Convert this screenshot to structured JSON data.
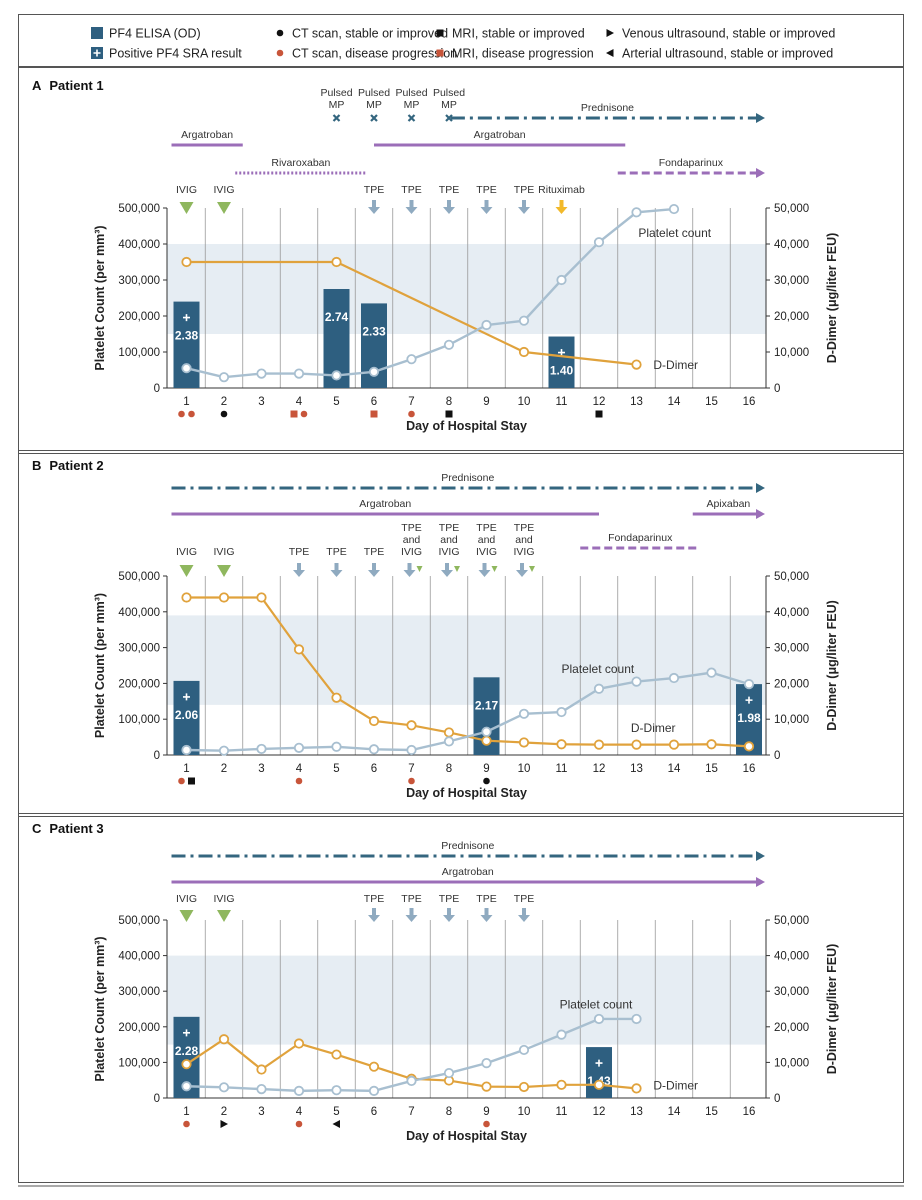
{
  "legend": [
    {
      "id": "elisa",
      "label": "PF4 ELISA (OD)"
    },
    {
      "id": "ct_stable",
      "label": "CT scan, stable or improved"
    },
    {
      "id": "mri_stable",
      "label": "MRI, stable or improved"
    },
    {
      "id": "venous",
      "label": "Venous ultrasound, stable or improved"
    },
    {
      "id": "sra",
      "label": "Positive PF4 SRA result"
    },
    {
      "id": "ct_prog",
      "label": "CT scan, disease progression"
    },
    {
      "id": "mri_prog",
      "label": "MRI, disease progression"
    },
    {
      "id": "arterial",
      "label": "Arterial ultrasound, stable or improved"
    }
  ],
  "colors": {
    "bar": "#2e5f80",
    "platelet": "#a8bfd0",
    "ddimer": "#e0a23c",
    "band": "#e6edf3",
    "red": "#c8553a",
    "black": "#111111",
    "argatroban": "#9b6eb8",
    "prednisone": "#34667f",
    "ivig": "#8fb75e",
    "tpe": "#8faac0",
    "rituximab": "#f2b92a",
    "mp": "#34667f"
  },
  "chart_data": [
    {
      "panel": "A",
      "title": "Patient 1",
      "type": "bar+line",
      "xlabel": "Day of Hospital Stay",
      "ylabel_left": "Platelet Count (per mm³)",
      "ylabel_right": "D-Dimer (μg/liter FEU)",
      "ylim_left": [
        0,
        500000
      ],
      "ylim_right": [
        0,
        50000
      ],
      "yticks_left": [
        "0",
        "100,000",
        "200,000",
        "300,000",
        "400,000",
        "500,000"
      ],
      "yticks_right": [
        "0",
        "10,000",
        "20,000",
        "30,000",
        "40,000",
        "50,000"
      ],
      "days": [
        1,
        2,
        3,
        4,
        5,
        6,
        7,
        8,
        9,
        10,
        11,
        12,
        13,
        14,
        15,
        16
      ],
      "normal_band": [
        150000,
        400000
      ],
      "bars": [
        {
          "day": 1,
          "value": 2.38,
          "label": "2.38",
          "sra": true,
          "height": 240000
        },
        {
          "day": 5,
          "value": 2.74,
          "label": "2.74",
          "sra": false,
          "height": 275000
        },
        {
          "day": 6,
          "value": 2.33,
          "label": "2.33",
          "sra": false,
          "height": 235000
        },
        {
          "day": 11,
          "value": 1.4,
          "label": "1.40",
          "sra": true,
          "height": 143000
        }
      ],
      "platelets": [
        [
          1,
          55000
        ],
        [
          2,
          30000
        ],
        [
          3,
          40000
        ],
        [
          4,
          40000
        ],
        [
          5,
          35000
        ],
        [
          6,
          45000
        ],
        [
          7,
          80000
        ],
        [
          8,
          120000
        ],
        [
          9,
          175000
        ],
        [
          10,
          187000
        ],
        [
          11,
          300000
        ],
        [
          12,
          405000
        ],
        [
          13,
          488000
        ],
        [
          14,
          497000
        ]
      ],
      "ddimer": [
        [
          1,
          35000
        ],
        [
          5,
          35000
        ],
        [
          10,
          10000
        ],
        [
          13,
          6500
        ]
      ],
      "platelet_label": "Platelet count",
      "ddimer_label": "D-Dimer",
      "label_pos": {
        "platelet": [
          13.05,
          430000
        ],
        "ddimer": [
          13.45,
          64000
        ]
      },
      "markers": [
        {
          "day": 1,
          "items": [
            "ct_prog",
            "ct_prog"
          ]
        },
        {
          "day": 2,
          "items": [
            "ct_stable"
          ]
        },
        {
          "day": 4,
          "items": [
            "mri_prog",
            "ct_prog"
          ]
        },
        {
          "day": 6,
          "items": [
            "mri_prog"
          ]
        },
        {
          "day": 7,
          "items": [
            "ct_prog"
          ]
        },
        {
          "day": 8,
          "items": [
            "mri_stable"
          ]
        },
        {
          "day": 12,
          "items": [
            "mri_stable"
          ]
        }
      ],
      "treatments": [
        {
          "type": "mp",
          "label": "Pulsed MP",
          "days": [
            5,
            6,
            7,
            8
          ]
        },
        {
          "type": "line",
          "style": "dashdot",
          "label": "Prednisone",
          "from": 8.05,
          "to": 16.4,
          "arrow": true,
          "row": "r1",
          "color": "prednisone"
        },
        {
          "type": "line",
          "style": "solid",
          "label": "Argatroban",
          "from": 0.6,
          "to": 2.5,
          "arrow": false,
          "row": "r2",
          "color": "argatroban"
        },
        {
          "type": "line",
          "style": "solid",
          "label": "Argatroban",
          "from": 6,
          "to": 12.7,
          "arrow": false,
          "row": "r2",
          "color": "argatroban"
        },
        {
          "type": "line",
          "style": "dotted",
          "label": "Rivaroxaban",
          "from": 2.3,
          "to": 5.8,
          "arrow": false,
          "row": "r3",
          "color": "argatroban"
        },
        {
          "type": "line",
          "style": "dashed",
          "label": "Fondaparinux",
          "from": 12.5,
          "to": 16.4,
          "arrow": true,
          "row": "r3",
          "color": "argatroban"
        },
        {
          "type": "ivig",
          "label": "IVIG",
          "days": [
            1,
            2
          ]
        },
        {
          "type": "tpe",
          "label": "TPE",
          "days": [
            6,
            7,
            8,
            9,
            10
          ]
        },
        {
          "type": "rituximab",
          "label": "Rituximab",
          "days": [
            11
          ]
        }
      ]
    },
    {
      "panel": "B",
      "title": "Patient 2",
      "type": "bar+line",
      "xlabel": "Day of Hospital Stay",
      "ylabel_left": "Platelet Count (per mm³)",
      "ylabel_right": "D-Dimer (μg/liter FEU)",
      "ylim_left": [
        0,
        500000
      ],
      "ylim_right": [
        0,
        50000
      ],
      "yticks_left": [
        "0",
        "100,000",
        "200,000",
        "300,000",
        "400,000",
        "500,000"
      ],
      "yticks_right": [
        "0",
        "10,000",
        "20,000",
        "30,000",
        "40,000",
        "50,000"
      ],
      "days": [
        1,
        2,
        3,
        4,
        5,
        6,
        7,
        8,
        9,
        10,
        11,
        12,
        13,
        14,
        15,
        16
      ],
      "normal_band": [
        140000,
        390000
      ],
      "bars": [
        {
          "day": 1,
          "value": 2.06,
          "label": "2.06",
          "sra": true,
          "height": 207000
        },
        {
          "day": 9,
          "value": 2.17,
          "label": "2.17",
          "sra": false,
          "height": 217000
        },
        {
          "day": 16,
          "value": 1.98,
          "label": "1.98",
          "sra": true,
          "height": 198000
        }
      ],
      "platelets": [
        [
          1,
          14000
        ],
        [
          2,
          12000
        ],
        [
          3,
          17000
        ],
        [
          4,
          20000
        ],
        [
          5,
          23000
        ],
        [
          6,
          16000
        ],
        [
          7,
          14000
        ],
        [
          8,
          38000
        ],
        [
          9,
          65000
        ],
        [
          10,
          115000
        ],
        [
          11,
          120000
        ],
        [
          12,
          185000
        ],
        [
          13,
          205000
        ],
        [
          14,
          215000
        ],
        [
          15,
          230000
        ],
        [
          16,
          198000
        ]
      ],
      "ddimer": [
        [
          1,
          44000
        ],
        [
          2,
          44000
        ],
        [
          3,
          44000
        ],
        [
          4,
          29500
        ],
        [
          5,
          16000
        ],
        [
          6,
          9500
        ],
        [
          7,
          8300
        ],
        [
          8,
          6300
        ],
        [
          9,
          4000
        ],
        [
          10,
          3500
        ],
        [
          11,
          3000
        ],
        [
          12,
          2900
        ],
        [
          13,
          2900
        ],
        [
          14,
          2900
        ],
        [
          15,
          3000
        ],
        [
          16,
          2400
        ]
      ],
      "platelet_label": "Platelet count",
      "ddimer_label": "D-Dimer",
      "label_pos": {
        "platelet": [
          11.0,
          240000
        ],
        "ddimer": [
          12.85,
          75000
        ]
      },
      "markers": [
        {
          "day": 1,
          "items": [
            "ct_prog",
            "mri_stable"
          ]
        },
        {
          "day": 4,
          "items": [
            "ct_prog"
          ]
        },
        {
          "day": 7,
          "items": [
            "ct_prog"
          ]
        },
        {
          "day": 9,
          "items": [
            "ct_stable"
          ]
        }
      ],
      "treatments": [
        {
          "type": "line",
          "style": "dashdot",
          "label": "Prednisone",
          "from": 0.6,
          "to": 16.4,
          "arrow": true,
          "row": "r1",
          "color": "prednisone"
        },
        {
          "type": "line",
          "style": "solid",
          "label": "Argatroban",
          "from": 0.6,
          "to": 12,
          "arrow": false,
          "row": "r2",
          "color": "argatroban"
        },
        {
          "type": "line",
          "style": "solid",
          "label": "Apixaban",
          "from": 14.5,
          "to": 16.4,
          "arrow": true,
          "row": "r2",
          "color": "argatroban"
        },
        {
          "type": "line",
          "style": "dashed",
          "label": "Fondaparinux",
          "from": 11.5,
          "to": 14.7,
          "arrow": false,
          "row": "r3",
          "color": "argatroban"
        },
        {
          "type": "ivig",
          "label": "IVIG",
          "days": [
            1,
            2
          ]
        },
        {
          "type": "tpe",
          "label": "TPE",
          "days": [
            4,
            5,
            6
          ]
        },
        {
          "type": "tpeivig",
          "label": "TPE and IVIG",
          "days": [
            7,
            8,
            9,
            10
          ]
        }
      ]
    },
    {
      "panel": "C",
      "title": "Patient 3",
      "type": "bar+line",
      "xlabel": "Day of Hospital Stay",
      "ylabel_left": "Platelet Count (per mm³)",
      "ylabel_right": "D-Dimer (μg/liter FEU)",
      "ylim_left": [
        0,
        500000
      ],
      "ylim_right": [
        0,
        50000
      ],
      "yticks_left": [
        "0",
        "100,000",
        "200,000",
        "300,000",
        "400,000",
        "500,000"
      ],
      "yticks_right": [
        "0",
        "10,000",
        "20,000",
        "30,000",
        "40,000",
        "50,000"
      ],
      "days": [
        1,
        2,
        3,
        4,
        5,
        6,
        7,
        8,
        9,
        10,
        11,
        12,
        13,
        14,
        15,
        16
      ],
      "normal_band": [
        150000,
        400000
      ],
      "bars": [
        {
          "day": 1,
          "value": 2.28,
          "label": "2.28",
          "sra": true,
          "height": 228000
        },
        {
          "day": 12,
          "value": 1.43,
          "label": "1.43",
          "sra": true,
          "height": 143000
        }
      ],
      "platelets": [
        [
          1,
          33000
        ],
        [
          2,
          30000
        ],
        [
          3,
          25000
        ],
        [
          4,
          20000
        ],
        [
          5,
          22000
        ],
        [
          6,
          20000
        ],
        [
          7,
          48000
        ],
        [
          8,
          70000
        ],
        [
          9,
          98000
        ],
        [
          10,
          135000
        ],
        [
          11,
          178000
        ],
        [
          12,
          222000
        ],
        [
          13,
          222000
        ]
      ],
      "ddimer": [
        [
          1,
          9500
        ],
        [
          2,
          16500
        ],
        [
          3,
          8000
        ],
        [
          4,
          15300
        ],
        [
          5,
          12200
        ],
        [
          6,
          8800
        ],
        [
          7,
          5400
        ],
        [
          8,
          4900
        ],
        [
          9,
          3200
        ],
        [
          10,
          3100
        ],
        [
          11,
          3700
        ],
        [
          12,
          3700
        ],
        [
          13,
          2700
        ]
      ],
      "platelet_label": "Platelet count",
      "ddimer_label": "D-Dimer",
      "label_pos": {
        "platelet": [
          10.95,
          263000
        ],
        "ddimer": [
          13.45,
          35000
        ]
      },
      "markers": [
        {
          "day": 1,
          "items": [
            "ct_prog"
          ]
        },
        {
          "day": 2,
          "items": [
            "venous"
          ]
        },
        {
          "day": 4,
          "items": [
            "ct_prog"
          ]
        },
        {
          "day": 5,
          "items": [
            "arterial"
          ]
        },
        {
          "day": 9,
          "items": [
            "ct_prog"
          ]
        }
      ],
      "treatments": [
        {
          "type": "line",
          "style": "dashdot",
          "label": "Prednisone",
          "from": 0.6,
          "to": 16.4,
          "arrow": true,
          "row": "r1",
          "color": "prednisone"
        },
        {
          "type": "line",
          "style": "solid",
          "label": "Argatroban",
          "from": 0.6,
          "to": 16.4,
          "arrow": true,
          "row": "r2",
          "color": "argatroban"
        },
        {
          "type": "ivig",
          "label": "IVIG",
          "days": [
            1,
            2
          ]
        },
        {
          "type": "tpe",
          "label": "TPE",
          "days": [
            6,
            7,
            8,
            9,
            10
          ]
        }
      ]
    }
  ]
}
